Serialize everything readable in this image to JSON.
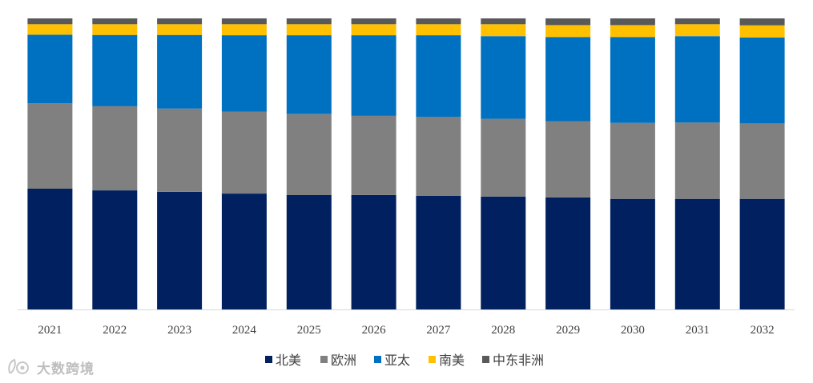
{
  "chart_data": {
    "type": "bar",
    "stacked": true,
    "normalized": true,
    "categories": [
      "2021",
      "2022",
      "2023",
      "2024",
      "2025",
      "2026",
      "2027",
      "2028",
      "2029",
      "2030",
      "2031",
      "2032"
    ],
    "ylim": [
      0,
      1
    ],
    "grid": false,
    "legend_position": "bottom",
    "series": [
      {
        "name": "北美",
        "color": "#002060",
        "values": [
          0.415,
          0.409,
          0.404,
          0.398,
          0.393,
          0.393,
          0.39,
          0.388,
          0.385,
          0.38,
          0.38,
          0.38
        ]
      },
      {
        "name": "欧洲",
        "color": "#808080",
        "values": [
          0.293,
          0.289,
          0.286,
          0.281,
          0.278,
          0.272,
          0.272,
          0.267,
          0.262,
          0.261,
          0.262,
          0.258
        ]
      },
      {
        "name": "亚太",
        "color": "#0070C0",
        "values": [
          0.236,
          0.245,
          0.253,
          0.263,
          0.271,
          0.277,
          0.28,
          0.284,
          0.289,
          0.295,
          0.297,
          0.296
        ]
      },
      {
        "name": "南美",
        "color": "#FFC000",
        "values": [
          0.036,
          0.037,
          0.037,
          0.038,
          0.038,
          0.038,
          0.038,
          0.041,
          0.041,
          0.041,
          0.041,
          0.042
        ]
      },
      {
        "name": "中东非洲",
        "color": "#595959",
        "values": [
          0.02,
          0.02,
          0.02,
          0.02,
          0.02,
          0.02,
          0.02,
          0.02,
          0.023,
          0.023,
          0.02,
          0.024
        ]
      }
    ]
  },
  "watermark": {
    "text": "大数跨境"
  }
}
